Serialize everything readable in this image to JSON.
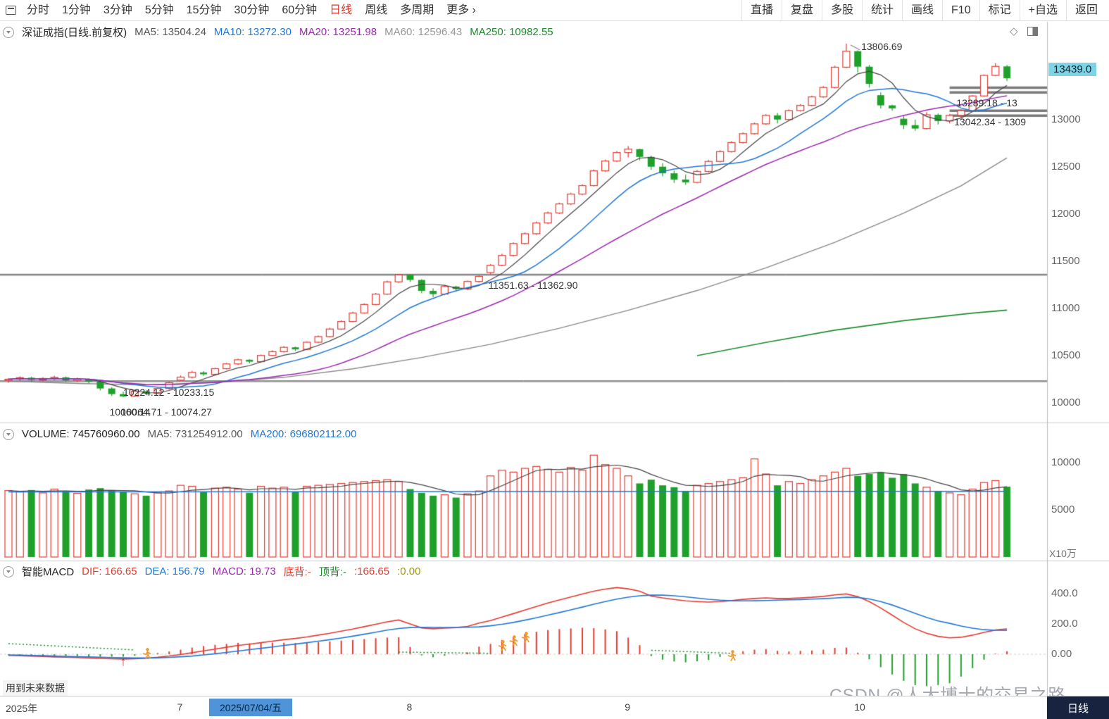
{
  "toolbar": {
    "left_items": [
      "分时",
      "1分钟",
      "3分钟",
      "5分钟",
      "15分钟",
      "30分钟",
      "60分钟",
      "日线",
      "周线",
      "多周期",
      "更多 ›"
    ],
    "active_item": "日线",
    "right_items": [
      "直播",
      "复盘",
      "多股",
      "统计",
      "画线",
      "F10",
      "标记",
      "+自选",
      "返回"
    ]
  },
  "main_header": {
    "title": "深证成指(日线.前复权)",
    "ma5": "MA5: 13504.24",
    "ma10": "MA10: 13272.30",
    "ma20": "MA20: 13251.98",
    "ma60": "MA60: 12596.43",
    "ma250": "MA250: 10982.55"
  },
  "volume_header": {
    "volume": "VOLUME: 745760960.00",
    "ma5": "MA5: 731254912.00",
    "ma200": "MA200: 696802112.00"
  },
  "macd_header": {
    "name": "智能MACD",
    "dif": "DIF: 166.65",
    "dea": "DEA: 156.79",
    "macd": "MACD: 19.73",
    "bottom_div": "底背:-",
    "top_div": "顶背:-",
    "v1": ":166.65",
    "v2": ":0.00"
  },
  "axes": {
    "price_tag": "13439.0",
    "volume_unit": "X10万",
    "price_ticks": [
      {
        "label": "13000",
        "value": 13000
      },
      {
        "label": "12500",
        "value": 12500
      },
      {
        "label": "12000",
        "value": 12000
      },
      {
        "label": "11500",
        "value": 11500
      },
      {
        "label": "11000",
        "value": 11000
      },
      {
        "label": "10500",
        "value": 10500
      },
      {
        "label": "10000",
        "value": 10000
      }
    ],
    "volume_ticks": [
      {
        "label": "10000",
        "value": 10000
      },
      {
        "label": "5000",
        "value": 5000
      }
    ],
    "macd_ticks": [
      {
        "label": "400.0",
        "value": 400
      },
      {
        "label": "200.0",
        "value": 200
      },
      {
        "label": "0.00",
        "value": 0
      }
    ]
  },
  "time_axis": {
    "year": "2025年",
    "selected_date": "2025/07/04/五",
    "month_ticks": [
      {
        "label": "7",
        "index": 15
      },
      {
        "label": "8",
        "index": 35
      },
      {
        "label": "9",
        "index": 54
      },
      {
        "label": "10",
        "index": 74
      }
    ],
    "period": "日线"
  },
  "footer": {
    "notice": "用到未来数据",
    "watermark": "CSDN @人大博士的交易之路"
  },
  "colors": {
    "up": "#e23b30",
    "down": "#1fa02b",
    "ma5": "#444444",
    "ma10": "#2277d4",
    "ma20": "#9c27b0",
    "ma60": "#8a8a8a",
    "ma250": "#1d8c2c",
    "dif": "#e23b30",
    "dea": "#2277d4",
    "signal": "#1d8c2c",
    "marker": "#f09a2e",
    "price_tag_bg": "#7ed3e5",
    "selected_date_bg": "#4f94d9",
    "period_bg": "#17233f"
  },
  "chart_data": {
    "type": "candlestick",
    "index_name": "深证成指",
    "period": "日线",
    "adjust": "前复权",
    "price_range": [
      9900,
      14100
    ],
    "volume_unit": "X10万",
    "candles": [
      [
        10238,
        10262,
        10212,
        10250,
        7050
      ],
      [
        10250,
        10280,
        10236,
        10266,
        6900
      ],
      [
        10266,
        10276,
        10222,
        10242,
        7100
      ],
      [
        10242,
        10270,
        10226,
        10258,
        6800
      ],
      [
        10258,
        10288,
        10240,
        10270,
        7200
      ],
      [
        10270,
        10278,
        10222,
        10238,
        7000
      ],
      [
        10238,
        10266,
        10220,
        10252,
        6750
      ],
      [
        10252,
        10258,
        10206,
        10224,
        7150
      ],
      [
        10224,
        10236,
        10130,
        10152,
        7300
      ],
      [
        10152,
        10166,
        10072,
        10092,
        7100
      ],
      [
        10092,
        10120,
        10060.14,
        10068,
        6900
      ],
      [
        10068,
        10140,
        10062,
        10122,
        6700
      ],
      [
        10122,
        10136,
        10080,
        10098,
        6500
      ],
      [
        10098,
        10160,
        10090,
        10152,
        6800
      ],
      [
        10152,
        10224.12,
        10140,
        10212,
        7000
      ],
      [
        10240,
        10290,
        10233.15,
        10272,
        7600
      ],
      [
        10272,
        10340,
        10260,
        10322,
        7500
      ],
      [
        10322,
        10336,
        10286,
        10302,
        6900
      ],
      [
        10302,
        10372,
        10296,
        10362,
        7300
      ],
      [
        10362,
        10424,
        10352,
        10412,
        7400
      ],
      [
        10412,
        10468,
        10400,
        10456,
        7200
      ],
      [
        10456,
        10462,
        10418,
        10436,
        6800
      ],
      [
        10436,
        10512,
        10428,
        10502,
        7500
      ],
      [
        10502,
        10556,
        10492,
        10542,
        7300
      ],
      [
        10542,
        10600,
        10532,
        10588,
        7400
      ],
      [
        10588,
        10596,
        10548,
        10566,
        6900
      ],
      [
        10566,
        10652,
        10558,
        10642,
        7500
      ],
      [
        10642,
        10714,
        10632,
        10702,
        7600
      ],
      [
        10702,
        10794,
        10694,
        10782,
        7700
      ],
      [
        10782,
        10874,
        10772,
        10862,
        7800
      ],
      [
        10862,
        10964,
        10854,
        10952,
        7900
      ],
      [
        10952,
        11054,
        10944,
        11042,
        8000
      ],
      [
        11042,
        11164,
        11034,
        11152,
        8100
      ],
      [
        11152,
        11294,
        11144,
        11282,
        8200
      ],
      [
        11282,
        11365,
        11270,
        11356,
        8000
      ],
      [
        11356,
        11360,
        11280,
        11302,
        7200
      ],
      [
        11302,
        11310,
        11160,
        11186,
        6800
      ],
      [
        11186,
        11212,
        11120,
        11152,
        6500
      ],
      [
        11152,
        11244,
        11140,
        11232,
        6600
      ],
      [
        11232,
        11240,
        11180,
        11206,
        6300
      ],
      [
        11206,
        11296,
        11196,
        11286,
        6700
      ],
      [
        11286,
        11351.63,
        11276,
        11340,
        7000
      ],
      [
        11380,
        11470,
        11362.9,
        11458,
        8600
      ],
      [
        11458,
        11580,
        11448,
        11562,
        9200
      ],
      [
        11562,
        11700,
        11550,
        11688,
        9000
      ],
      [
        11688,
        11806,
        11676,
        11792,
        9400
      ],
      [
        11792,
        11920,
        11780,
        11906,
        9600
      ],
      [
        11906,
        12026,
        11894,
        12012,
        9300
      ],
      [
        12012,
        12122,
        12000,
        12108,
        9000
      ],
      [
        12108,
        12226,
        12096,
        12212,
        9500
      ],
      [
        12212,
        12316,
        12200,
        12302,
        9200
      ],
      [
        12302,
        12472,
        12292,
        12458,
        10800
      ],
      [
        12458,
        12576,
        12446,
        12562,
        9800
      ],
      [
        12562,
        12668,
        12550,
        12652,
        9400
      ],
      [
        12652,
        12720,
        12600,
        12688,
        8600
      ],
      [
        12688,
        12692,
        12570,
        12606,
        7800
      ],
      [
        12606,
        12620,
        12470,
        12502,
        8200
      ],
      [
        12502,
        12540,
        12400,
        12432,
        7600
      ],
      [
        12432,
        12460,
        12330,
        12366,
        7400
      ],
      [
        12366,
        12420,
        12310,
        12336,
        7000
      ],
      [
        12336,
        12466,
        12326,
        12452,
        7600
      ],
      [
        12452,
        12572,
        12442,
        12558,
        7800
      ],
      [
        12558,
        12676,
        12548,
        12662,
        8000
      ],
      [
        12662,
        12772,
        12652,
        12758,
        8200
      ],
      [
        12758,
        12866,
        12748,
        12852,
        8400
      ],
      [
        12852,
        12970,
        12842,
        12956,
        10400
      ],
      [
        12956,
        13060,
        12946,
        13046,
        8800
      ],
      [
        13046,
        13072,
        12960,
        13002,
        7600
      ],
      [
        13002,
        13110,
        12992,
        13096,
        8000
      ],
      [
        13096,
        13166,
        13086,
        13152,
        7800
      ],
      [
        13152,
        13256,
        13142,
        13242,
        8200
      ],
      [
        13242,
        13356,
        13232,
        13342,
        8600
      ],
      [
        13342,
        13570,
        13332,
        13556,
        9000
      ],
      [
        13556,
        13806.69,
        13546,
        13726,
        9400
      ],
      [
        13726,
        13736,
        13500,
        13562,
        8600
      ],
      [
        13562,
        13580,
        13340,
        13380,
        8800
      ],
      [
        13260,
        13289.18,
        13120,
        13152,
        9000
      ],
      [
        13152,
        13158,
        13095,
        13120,
        8400
      ],
      [
        13010,
        13042.34,
        12902,
        12942,
        8800
      ],
      [
        12942,
        13000,
        12880,
        12906,
        7800
      ],
      [
        12906,
        13080,
        12896,
        13052,
        7400
      ],
      [
        13052,
        13066,
        12950,
        12986,
        7000
      ],
      [
        12986,
        13060,
        12960,
        13046,
        6800
      ],
      [
        13046,
        13110,
        13020,
        13096,
        6600
      ],
      [
        13096,
        13260,
        13086,
        13252,
        7200
      ],
      [
        13252,
        13480,
        13242,
        13470,
        7900
      ],
      [
        13470,
        13600,
        13460,
        13565,
        8100
      ],
      [
        13565,
        13580,
        13410,
        13439,
        7457.6
      ]
    ],
    "ma60_points": [
      [
        0,
        10230
      ],
      [
        6,
        10205
      ],
      [
        12,
        10190
      ],
      [
        18,
        10215
      ],
      [
        24,
        10270
      ],
      [
        30,
        10360
      ],
      [
        36,
        10480
      ],
      [
        42,
        10620
      ],
      [
        48,
        10790
      ],
      [
        54,
        10980
      ],
      [
        60,
        11190
      ],
      [
        66,
        11430
      ],
      [
        72,
        11700
      ],
      [
        78,
        12010
      ],
      [
        83,
        12300
      ],
      [
        87,
        12596
      ]
    ],
    "ma250_points": [
      [
        60,
        10500
      ],
      [
        66,
        10640
      ],
      [
        72,
        10770
      ],
      [
        78,
        10870
      ],
      [
        84,
        10950
      ],
      [
        87,
        10982
      ]
    ],
    "vol_ma200_points": [
      [
        0,
        6900
      ],
      [
        30,
        6930
      ],
      [
        60,
        6960
      ],
      [
        87,
        6968
      ]
    ],
    "dif": [
      -8,
      -10,
      -12,
      -15,
      -18,
      -20,
      -22,
      -25,
      -28,
      -30,
      -32,
      -30,
      -26,
      -20,
      -12,
      -2,
      10,
      22,
      34,
      46,
      58,
      66,
      76,
      86,
      96,
      104,
      114,
      126,
      138,
      152,
      166,
      182,
      198,
      214,
      226,
      200,
      174,
      168,
      172,
      176,
      184,
      206,
      222,
      245,
      268,
      292,
      315,
      338,
      358,
      378,
      398,
      416,
      430,
      440,
      432,
      416,
      384,
      372,
      362,
      352,
      348,
      344,
      348,
      354,
      362,
      368,
      372,
      368,
      368,
      372,
      376,
      382,
      392,
      398,
      380,
      348,
      305,
      258,
      210,
      168,
      138,
      118,
      108,
      112,
      126,
      144,
      160,
      166.65
    ],
    "dea": [
      -5,
      -6,
      -8,
      -10,
      -12,
      -14,
      -16,
      -18,
      -20,
      -22,
      -24,
      -25,
      -25,
      -24,
      -21,
      -17,
      -12,
      -5,
      3,
      12,
      21,
      30,
      39,
      48,
      58,
      67,
      76,
      86,
      96,
      107,
      119,
      132,
      145,
      159,
      170,
      176,
      178,
      178,
      177,
      177,
      178,
      181,
      188,
      198,
      210,
      225,
      241,
      258,
      275,
      293,
      311,
      330,
      348,
      364,
      377,
      386,
      390,
      390,
      386,
      379,
      371,
      363,
      357,
      353,
      352,
      353,
      355,
      357,
      359,
      361,
      364,
      367,
      371,
      376,
      375,
      365,
      348,
      325,
      298,
      270,
      243,
      220,
      204,
      186,
      172,
      162,
      158,
      156.79
    ],
    "signal_segments": [
      [
        [
          0,
          70
        ],
        [
          11,
          28
        ]
      ],
      [
        [
          34,
          14
        ],
        [
          42,
          6
        ]
      ],
      [
        [
          56,
          26
        ],
        [
          63,
          6
        ]
      ]
    ],
    "gap_lines": [
      11362.9,
      11351.63,
      10233.15,
      10224.12
    ],
    "gap_zones": [
      {
        "from_i": 82,
        "levels": [
          13340,
          13289.18
        ]
      },
      {
        "from_i": 82,
        "levels": [
          13095,
          13042.34
        ]
      }
    ],
    "annotations": [
      {
        "type": "peak",
        "text": "13806.69",
        "i": 74.3,
        "p": 13838
      },
      {
        "type": "plain",
        "text": "13289.18 - 13",
        "i": 82.6,
        "p": 13238
      },
      {
        "type": "plain",
        "text": "13042.34 - 1309",
        "i": 82.4,
        "p": 13035
      },
      {
        "type": "plain",
        "text": "11351.63 - 11362.90",
        "i": 41.8,
        "p": 11308
      },
      {
        "type": "plain",
        "text": "10224.12 - 10233.15",
        "i": 10.0,
        "p": 10168
      },
      {
        "type": "plain",
        "text": "10064.71 - 10074.27",
        "i": 9.8,
        "p": 9960
      },
      {
        "type": "plain",
        "text": "10060.14",
        "i": 8.8,
        "p": 9966
      }
    ],
    "markers": [
      {
        "type": "arrow",
        "i": 10,
        "v": -58
      },
      {
        "type": "person",
        "i": 12,
        "v": -14
      },
      {
        "type": "person",
        "i": 43,
        "v": 38
      },
      {
        "type": "person",
        "i": 44,
        "v": 72
      },
      {
        "type": "person",
        "i": 45,
        "v": 95
      },
      {
        "type": "person",
        "i": 63,
        "v": -30
      }
    ]
  }
}
